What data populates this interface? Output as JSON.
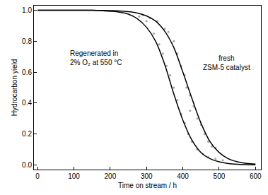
{
  "chart_data": {
    "type": "scatter",
    "x_label": "Time on stream / h",
    "y_label": "Hydrocarbon yield",
    "xlim": [
      -10,
      615
    ],
    "ylim": [
      -0.03,
      1.03
    ],
    "xticks": [
      0,
      100,
      200,
      300,
      400,
      500,
      600
    ],
    "yticks": [
      {
        "value": 0,
        "label": "0.0"
      },
      {
        "value": 0.2,
        "label": "0.2"
      },
      {
        "value": 0.4,
        "label": "0.4"
      },
      {
        "value": 0.6,
        "label": "0.6"
      },
      {
        "value": 0.8,
        "label": "0.8"
      },
      {
        "value": 1,
        "label": "1.0"
      }
    ],
    "grid": false,
    "series": [
      {
        "type": "scatter",
        "color": "#a0a0a0",
        "marker": "circle",
        "x": [
          290,
          310,
          330,
          350,
          360,
          375,
          385,
          395,
          405,
          410,
          420,
          420,
          430,
          440,
          450,
          460,
          470,
          480,
          490
        ],
        "values": [
          0.97,
          0.95,
          0.93,
          0.88,
          0.86,
          0.8,
          0.72,
          0.64,
          0.58,
          0.5,
          0.45,
          0.35,
          0.38,
          0.3,
          0.26,
          0.2,
          0.15,
          0.12,
          0.11
        ]
      },
      {
        "type": "scatter",
        "color": "#a0a0a0",
        "marker": "circle",
        "x": [
          280,
          300,
          320,
          335,
          345,
          355,
          365,
          375,
          385,
          395,
          405,
          415,
          425,
          440,
          455,
          470,
          490,
          510
        ],
        "values": [
          0.96,
          0.93,
          0.85,
          0.78,
          0.72,
          0.64,
          0.58,
          0.5,
          0.42,
          0.33,
          0.27,
          0.2,
          0.15,
          0.1,
          0.07,
          0.05,
          0.04,
          0.03
        ]
      },
      {
        "type": "line",
        "color": "#000000",
        "line_style": "solid",
        "x": [
          0,
          25,
          50,
          75,
          100,
          125,
          150,
          175,
          200,
          225,
          250,
          275,
          300,
          325,
          350,
          375,
          400,
          425,
          450,
          475,
          500,
          525,
          550,
          575,
          600
        ],
        "values": [
          1.0,
          1.0,
          1.0,
          1.0,
          1.0,
          1.0,
          1.0,
          0.999,
          0.998,
          0.996,
          0.991,
          0.982,
          0.964,
          0.93,
          0.865,
          0.76,
          0.6,
          0.43,
          0.27,
          0.15,
          0.08,
          0.04,
          0.02,
          0.01,
          0.005
        ]
      },
      {
        "type": "line",
        "color": "#000000",
        "line_style": "solid",
        "x": [
          0,
          25,
          50,
          75,
          100,
          125,
          150,
          175,
          200,
          225,
          250,
          275,
          300,
          325,
          350,
          375,
          400,
          425,
          450,
          475,
          500,
          525,
          550,
          575,
          600
        ],
        "values": [
          1.0,
          1.0,
          1.0,
          1.0,
          1.0,
          1.0,
          1.0,
          0.998,
          0.994,
          0.988,
          0.975,
          0.945,
          0.89,
          0.8,
          0.65,
          0.46,
          0.29,
          0.16,
          0.08,
          0.04,
          0.02,
          0.009,
          0.004,
          0.002,
          0.001
        ]
      }
    ],
    "annotations": [
      {
        "text": "fresh\nZSM-5 catalyst",
        "x": 520,
        "y": 0.66
      },
      {
        "text": "Regenerated in\n2% O₂ at 550 °C",
        "x": 85,
        "y": 0.69
      }
    ]
  }
}
